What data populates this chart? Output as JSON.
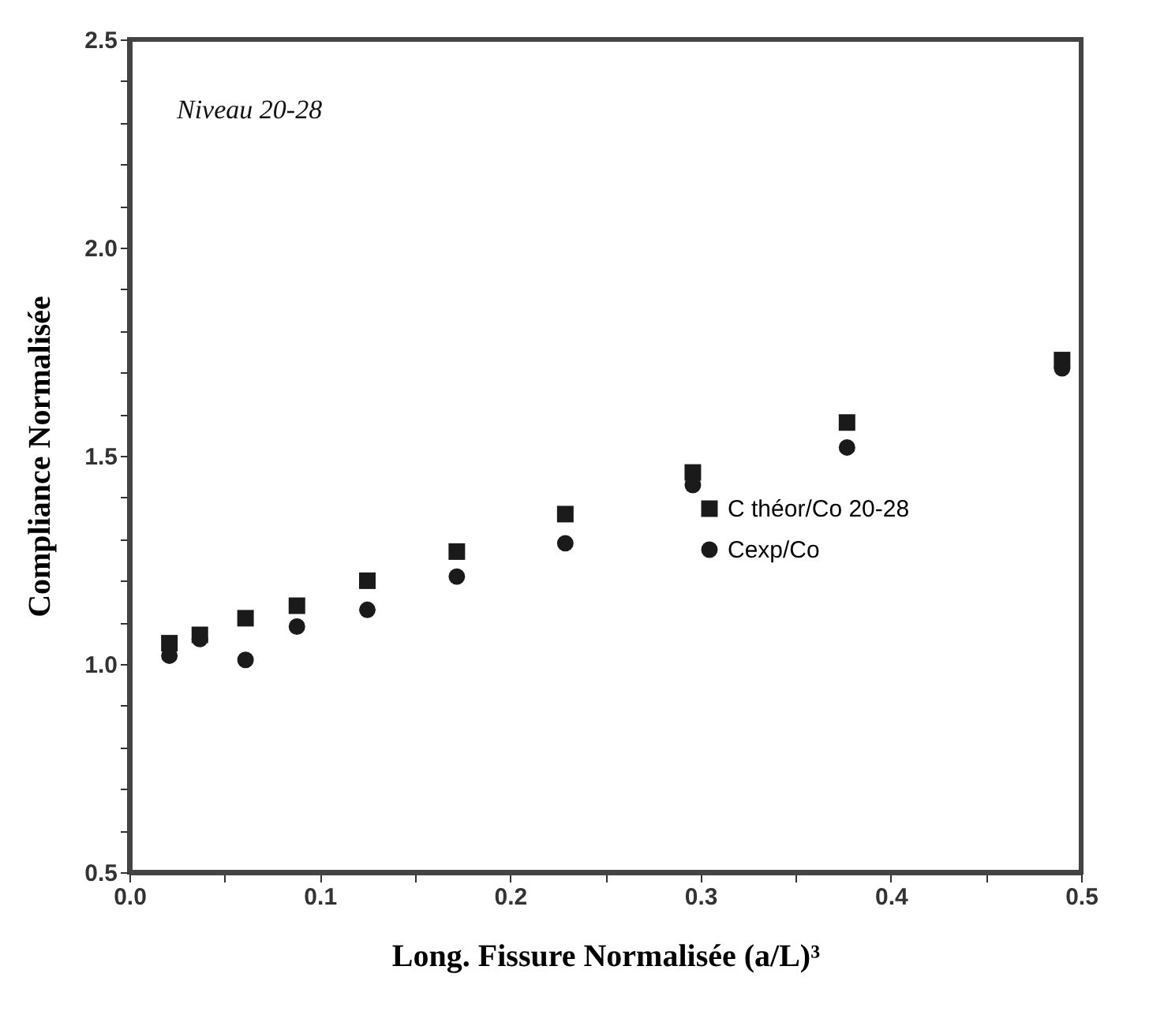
{
  "chart_data": {
    "type": "scatter",
    "xlabel": "Long. Fissure Normalisée (a/L)³",
    "ylabel": "Compliance Normalisée",
    "annotations": [
      "Niveau 20-28"
    ],
    "xlim": [
      0,
      0.5
    ],
    "ylim": [
      0.5,
      2.5
    ],
    "xticks": [
      {
        "value": 0,
        "label": "0.0"
      },
      {
        "value": 0.05,
        "label": null
      },
      {
        "value": 0.1,
        "label": "0.1"
      },
      {
        "value": 0.15,
        "label": null
      },
      {
        "value": 0.2,
        "label": "0.2"
      },
      {
        "value": 0.25,
        "label": null
      },
      {
        "value": 0.3,
        "label": "0.3"
      },
      {
        "value": 0.35,
        "label": null
      },
      {
        "value": 0.4,
        "label": "0.4"
      },
      {
        "value": 0.45,
        "label": null
      },
      {
        "value": 0.5,
        "label": "0.5"
      }
    ],
    "yticks": [
      0.5,
      {
        "value": 0.6,
        "label": null
      },
      {
        "value": 0.7,
        "label": null
      },
      {
        "value": 0.8,
        "label": null
      },
      {
        "value": 0.9,
        "label": null
      },
      {
        "value": 1.0,
        "label": "1.0"
      },
      {
        "value": 1.1,
        "label": null
      },
      {
        "value": 1.2,
        "label": null
      },
      {
        "value": 1.3,
        "label": null
      },
      {
        "value": 1.4,
        "label": null
      },
      1.5,
      {
        "value": 1.6,
        "label": null
      },
      {
        "value": 1.7,
        "label": null
      },
      {
        "value": 1.8,
        "label": null
      },
      {
        "value": 1.9,
        "label": null
      },
      {
        "value": 2.0,
        "label": "2.0"
      },
      {
        "value": 2.1,
        "label": null
      },
      {
        "value": 2.2,
        "label": null
      },
      {
        "value": 2.3,
        "label": null
      },
      {
        "value": 2.4,
        "label": null
      },
      2.5
    ],
    "grid": false,
    "legend": "right",
    "x": [
      0.021,
      0.037,
      0.061,
      0.088,
      0.125,
      0.172,
      0.229,
      0.296,
      0.377,
      0.49
    ],
    "series": [
      {
        "name": "C théor/Co 20-28",
        "color": "#1a1a1a",
        "marker": "square",
        "values": [
          1.05,
          1.07,
          1.11,
          1.14,
          1.2,
          1.27,
          1.36,
          1.46,
          1.58,
          1.73
        ]
      },
      {
        "name": "Cexp/Co",
        "color": "#1a1a1a",
        "marker": "circle",
        "values": [
          1.02,
          1.06,
          1.01,
          1.09,
          1.13,
          1.21,
          1.29,
          1.43,
          1.52,
          1.71
        ]
      }
    ]
  }
}
